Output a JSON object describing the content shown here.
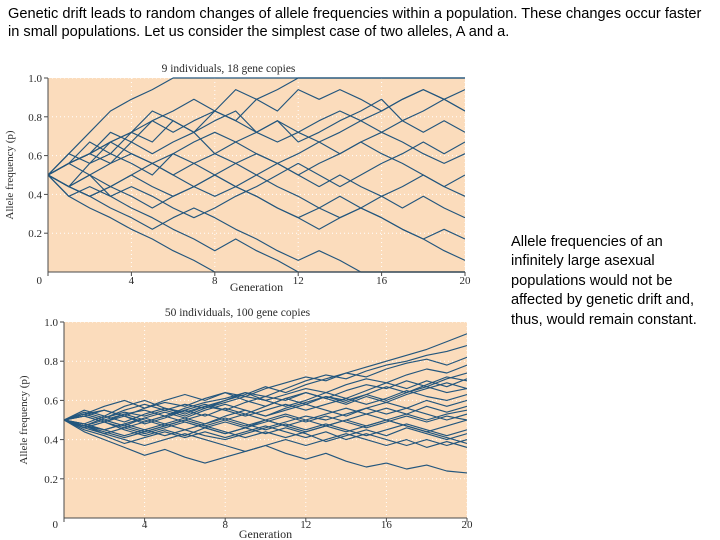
{
  "intro_text": "Genetic drift leads to random changes of allele frequencies within a population. These changes occur faster in small populations. Let us consider the simplest case of two alleles, A and a.",
  "side_note": "Allele frequencies of an infinitely large asexual populations would not be affected by genetic drift and, thus, would remain constant.",
  "colors": {
    "plot_background": "#fbdcbc",
    "series_line": "#23567d",
    "grid": "#ffffff"
  },
  "chart_data": [
    {
      "type": "line",
      "title": "9 individuals, 18 gene copies",
      "xlabel": "Generation",
      "ylabel": "Allele frequency (p)",
      "xlim": [
        0,
        20
      ],
      "ylim": [
        0,
        1
      ],
      "xticks": [
        "0",
        "4",
        "8",
        "12",
        "16",
        "20"
      ],
      "yticks": [
        "0.2",
        "0.4",
        "0.6",
        "0.8",
        "1.0"
      ],
      "grid": true,
      "x": [
        0,
        1,
        2,
        3,
        4,
        5,
        6,
        7,
        8,
        9,
        10,
        11,
        12,
        13,
        14,
        15,
        16,
        17,
        18,
        19,
        20
      ],
      "series": [
        {
          "values": [
            0.5,
            0.61,
            0.72,
            0.83,
            0.89,
            0.94,
            1.0,
            1.0,
            1.0,
            1.0,
            1.0,
            1.0,
            1.0,
            1.0,
            1.0,
            1.0,
            1.0,
            1.0,
            1.0,
            1.0,
            1.0
          ]
        },
        {
          "values": [
            0.5,
            0.56,
            0.61,
            0.72,
            0.67,
            0.78,
            0.83,
            0.89,
            0.83,
            0.94,
            0.89,
            0.94,
            1.0,
            1.0,
            1.0,
            1.0,
            1.0,
            1.0,
            1.0,
            1.0,
            1.0
          ]
        },
        {
          "values": [
            0.5,
            0.56,
            0.67,
            0.61,
            0.72,
            0.67,
            0.78,
            0.72,
            0.83,
            0.78,
            0.89,
            0.83,
            0.94,
            0.89,
            0.94,
            0.89,
            0.83,
            0.89,
            0.94,
            0.89,
            0.83
          ]
        },
        {
          "values": [
            0.5,
            0.61,
            0.56,
            0.67,
            0.72,
            0.83,
            0.78,
            0.72,
            0.78,
            0.83,
            0.72,
            0.78,
            0.67,
            0.72,
            0.78,
            0.83,
            0.89,
            0.78,
            0.72,
            0.78,
            0.72
          ]
        },
        {
          "values": [
            0.5,
            0.56,
            0.61,
            0.56,
            0.67,
            0.61,
            0.67,
            0.72,
            0.61,
            0.67,
            0.72,
            0.78,
            0.72,
            0.67,
            0.61,
            0.67,
            0.72,
            0.67,
            0.61,
            0.56,
            0.61
          ]
        },
        {
          "values": [
            0.5,
            0.44,
            0.56,
            0.61,
            0.56,
            0.5,
            0.61,
            0.67,
            0.72,
            0.67,
            0.61,
            0.56,
            0.61,
            0.67,
            0.72,
            0.78,
            0.83,
            0.89,
            0.94,
            0.89,
            0.94
          ]
        },
        {
          "values": [
            0.5,
            0.56,
            0.5,
            0.44,
            0.5,
            0.56,
            0.5,
            0.56,
            0.61,
            0.56,
            0.5,
            0.56,
            0.5,
            0.44,
            0.5,
            0.44,
            0.39,
            0.33,
            0.39,
            0.33,
            0.28
          ]
        },
        {
          "values": [
            0.5,
            0.44,
            0.5,
            0.56,
            0.61,
            0.56,
            0.61,
            0.56,
            0.5,
            0.44,
            0.5,
            0.44,
            0.39,
            0.33,
            0.28,
            0.33,
            0.28,
            0.22,
            0.17,
            0.22,
            0.17
          ]
        },
        {
          "values": [
            0.5,
            0.44,
            0.39,
            0.44,
            0.5,
            0.44,
            0.39,
            0.44,
            0.5,
            0.44,
            0.39,
            0.33,
            0.28,
            0.33,
            0.39,
            0.33,
            0.28,
            0.22,
            0.17,
            0.11,
            0.06
          ]
        },
        {
          "values": [
            0.5,
            0.44,
            0.39,
            0.33,
            0.28,
            0.22,
            0.28,
            0.33,
            0.28,
            0.22,
            0.17,
            0.11,
            0.06,
            0.11,
            0.06,
            0.0,
            0.0,
            0.0,
            0.0,
            0.0,
            0.0
          ]
        },
        {
          "values": [
            0.5,
            0.39,
            0.33,
            0.28,
            0.22,
            0.17,
            0.11,
            0.06,
            0.0,
            0.0,
            0.0,
            0.0,
            0.0,
            0.0,
            0.0,
            0.0,
            0.0,
            0.0,
            0.0,
            0.0,
            0.0
          ]
        },
        {
          "values": [
            0.5,
            0.44,
            0.5,
            0.39,
            0.44,
            0.39,
            0.33,
            0.28,
            0.33,
            0.39,
            0.44,
            0.5,
            0.56,
            0.5,
            0.44,
            0.5,
            0.56,
            0.61,
            0.67,
            0.61,
            0.67
          ]
        },
        {
          "values": [
            0.5,
            0.56,
            0.61,
            0.67,
            0.61,
            0.56,
            0.5,
            0.44,
            0.39,
            0.44,
            0.39,
            0.33,
            0.28,
            0.22,
            0.28,
            0.33,
            0.39,
            0.44,
            0.5,
            0.44,
            0.39
          ]
        },
        {
          "values": [
            0.5,
            0.44,
            0.39,
            0.44,
            0.39,
            0.33,
            0.39,
            0.44,
            0.5,
            0.56,
            0.61,
            0.56,
            0.5,
            0.56,
            0.61,
            0.67,
            0.61,
            0.56,
            0.5,
            0.44,
            0.5
          ]
        },
        {
          "values": [
            0.5,
            0.39,
            0.44,
            0.39,
            0.33,
            0.28,
            0.22,
            0.17,
            0.11,
            0.17,
            0.11,
            0.06,
            0.0,
            0.0,
            0.0,
            0.0,
            0.0,
            0.0,
            0.0,
            0.0,
            0.0
          ]
        },
        {
          "values": [
            0.5,
            0.56,
            0.61,
            0.67,
            0.72,
            0.78,
            0.72,
            0.78,
            0.83,
            0.78,
            0.72,
            0.67,
            0.72,
            0.78,
            0.83,
            0.78,
            0.72,
            0.78,
            0.83,
            0.89,
            0.83
          ]
        }
      ]
    },
    {
      "type": "line",
      "title": "50 individuals, 100 gene copies",
      "xlabel": "Generation",
      "ylabel": "Allele frequency (p)",
      "xlim": [
        0,
        20
      ],
      "ylim": [
        0,
        1
      ],
      "xticks": [
        "0",
        "4",
        "8",
        "12",
        "16",
        "20"
      ],
      "yticks": [
        "0.2",
        "0.4",
        "0.6",
        "0.8",
        "1.0"
      ],
      "grid": true,
      "x": [
        0,
        1,
        2,
        3,
        4,
        5,
        6,
        7,
        8,
        9,
        10,
        11,
        12,
        13,
        14,
        15,
        16,
        17,
        18,
        19,
        20
      ],
      "series": [
        {
          "values": [
            0.5,
            0.53,
            0.55,
            0.52,
            0.56,
            0.59,
            0.57,
            0.61,
            0.64,
            0.62,
            0.66,
            0.69,
            0.72,
            0.7,
            0.74,
            0.77,
            0.8,
            0.83,
            0.86,
            0.9,
            0.94
          ]
        },
        {
          "values": [
            0.5,
            0.52,
            0.49,
            0.53,
            0.55,
            0.52,
            0.56,
            0.59,
            0.61,
            0.64,
            0.62,
            0.66,
            0.7,
            0.73,
            0.71,
            0.75,
            0.78,
            0.8,
            0.83,
            0.85,
            0.88
          ]
        },
        {
          "values": [
            0.5,
            0.47,
            0.51,
            0.54,
            0.52,
            0.55,
            0.58,
            0.56,
            0.6,
            0.63,
            0.67,
            0.64,
            0.68,
            0.71,
            0.74,
            0.72,
            0.76,
            0.79,
            0.81,
            0.78,
            0.82
          ]
        },
        {
          "values": [
            0.5,
            0.54,
            0.51,
            0.55,
            0.58,
            0.55,
            0.52,
            0.56,
            0.59,
            0.62,
            0.6,
            0.63,
            0.66,
            0.64,
            0.68,
            0.71,
            0.69,
            0.73,
            0.76,
            0.74,
            0.78
          ]
        },
        {
          "values": [
            0.5,
            0.48,
            0.52,
            0.49,
            0.53,
            0.56,
            0.54,
            0.57,
            0.55,
            0.59,
            0.62,
            0.6,
            0.64,
            0.61,
            0.65,
            0.68,
            0.66,
            0.7,
            0.67,
            0.71,
            0.74
          ]
        },
        {
          "values": [
            0.5,
            0.53,
            0.5,
            0.47,
            0.51,
            0.54,
            0.51,
            0.55,
            0.58,
            0.55,
            0.52,
            0.56,
            0.59,
            0.62,
            0.6,
            0.63,
            0.67,
            0.64,
            0.68,
            0.72,
            0.7
          ]
        },
        {
          "values": [
            0.5,
            0.46,
            0.49,
            0.52,
            0.48,
            0.51,
            0.55,
            0.52,
            0.56,
            0.53,
            0.57,
            0.61,
            0.58,
            0.62,
            0.59,
            0.63,
            0.6,
            0.64,
            0.67,
            0.64,
            0.66
          ]
        },
        {
          "values": [
            0.5,
            0.52,
            0.55,
            0.52,
            0.49,
            0.52,
            0.55,
            0.58,
            0.55,
            0.52,
            0.55,
            0.58,
            0.55,
            0.58,
            0.61,
            0.58,
            0.61,
            0.65,
            0.62,
            0.6,
            0.63
          ]
        },
        {
          "values": [
            0.5,
            0.47,
            0.45,
            0.48,
            0.51,
            0.48,
            0.51,
            0.48,
            0.52,
            0.55,
            0.52,
            0.55,
            0.58,
            0.55,
            0.52,
            0.56,
            0.59,
            0.56,
            0.6,
            0.57,
            0.6
          ]
        },
        {
          "values": [
            0.5,
            0.53,
            0.5,
            0.53,
            0.5,
            0.47,
            0.5,
            0.53,
            0.5,
            0.47,
            0.5,
            0.53,
            0.5,
            0.53,
            0.56,
            0.53,
            0.56,
            0.53,
            0.57,
            0.54,
            0.57
          ]
        },
        {
          "values": [
            0.5,
            0.47,
            0.5,
            0.47,
            0.44,
            0.47,
            0.5,
            0.47,
            0.5,
            0.53,
            0.5,
            0.47,
            0.5,
            0.47,
            0.5,
            0.53,
            0.5,
            0.53,
            0.5,
            0.53,
            0.55
          ]
        },
        {
          "values": [
            0.5,
            0.52,
            0.49,
            0.46,
            0.49,
            0.52,
            0.49,
            0.46,
            0.49,
            0.46,
            0.49,
            0.52,
            0.49,
            0.52,
            0.49,
            0.46,
            0.49,
            0.52,
            0.49,
            0.52,
            0.5
          ]
        },
        {
          "values": [
            0.5,
            0.46,
            0.43,
            0.46,
            0.43,
            0.46,
            0.49,
            0.46,
            0.43,
            0.46,
            0.5,
            0.47,
            0.44,
            0.47,
            0.5,
            0.47,
            0.5,
            0.47,
            0.44,
            0.47,
            0.5
          ]
        },
        {
          "values": [
            0.5,
            0.48,
            0.45,
            0.48,
            0.45,
            0.42,
            0.45,
            0.48,
            0.51,
            0.48,
            0.45,
            0.48,
            0.45,
            0.48,
            0.45,
            0.42,
            0.45,
            0.48,
            0.45,
            0.42,
            0.45
          ]
        },
        {
          "values": [
            0.5,
            0.46,
            0.49,
            0.45,
            0.42,
            0.45,
            0.42,
            0.46,
            0.43,
            0.46,
            0.43,
            0.46,
            0.43,
            0.39,
            0.42,
            0.45,
            0.42,
            0.46,
            0.43,
            0.4,
            0.43
          ]
        },
        {
          "values": [
            0.5,
            0.45,
            0.42,
            0.38,
            0.41,
            0.44,
            0.41,
            0.44,
            0.41,
            0.44,
            0.47,
            0.44,
            0.41,
            0.44,
            0.4,
            0.43,
            0.4,
            0.37,
            0.4,
            0.37,
            0.4
          ]
        },
        {
          "values": [
            0.5,
            0.47,
            0.43,
            0.4,
            0.37,
            0.4,
            0.43,
            0.4,
            0.37,
            0.34,
            0.37,
            0.4,
            0.37,
            0.4,
            0.43,
            0.4,
            0.37,
            0.4,
            0.36,
            0.39,
            0.36
          ]
        },
        {
          "values": [
            0.5,
            0.44,
            0.4,
            0.36,
            0.32,
            0.35,
            0.31,
            0.28,
            0.31,
            0.34,
            0.37,
            0.33,
            0.3,
            0.33,
            0.29,
            0.26,
            0.28,
            0.25,
            0.27,
            0.24,
            0.23
          ]
        },
        {
          "values": [
            0.5,
            0.53,
            0.57,
            0.6,
            0.56,
            0.6,
            0.63,
            0.6,
            0.64,
            0.6,
            0.57,
            0.61,
            0.64,
            0.61,
            0.58,
            0.62,
            0.59,
            0.63,
            0.66,
            0.69,
            0.66
          ]
        },
        {
          "values": [
            0.5,
            0.48,
            0.45,
            0.42,
            0.45,
            0.48,
            0.45,
            0.42,
            0.4,
            0.43,
            0.46,
            0.49,
            0.52,
            0.5,
            0.53,
            0.56,
            0.53,
            0.56,
            0.53,
            0.5,
            0.53
          ]
        },
        {
          "values": [
            0.5,
            0.55,
            0.52,
            0.57,
            0.6,
            0.56,
            0.53,
            0.57,
            0.6,
            0.64,
            0.6,
            0.57,
            0.6,
            0.64,
            0.61,
            0.65,
            0.69,
            0.66,
            0.7,
            0.67,
            0.71
          ]
        },
        {
          "values": [
            0.5,
            0.47,
            0.44,
            0.41,
            0.44,
            0.47,
            0.5,
            0.47,
            0.44,
            0.41,
            0.44,
            0.41,
            0.44,
            0.47,
            0.44,
            0.47,
            0.5,
            0.47,
            0.44,
            0.41,
            0.38
          ]
        }
      ]
    }
  ]
}
